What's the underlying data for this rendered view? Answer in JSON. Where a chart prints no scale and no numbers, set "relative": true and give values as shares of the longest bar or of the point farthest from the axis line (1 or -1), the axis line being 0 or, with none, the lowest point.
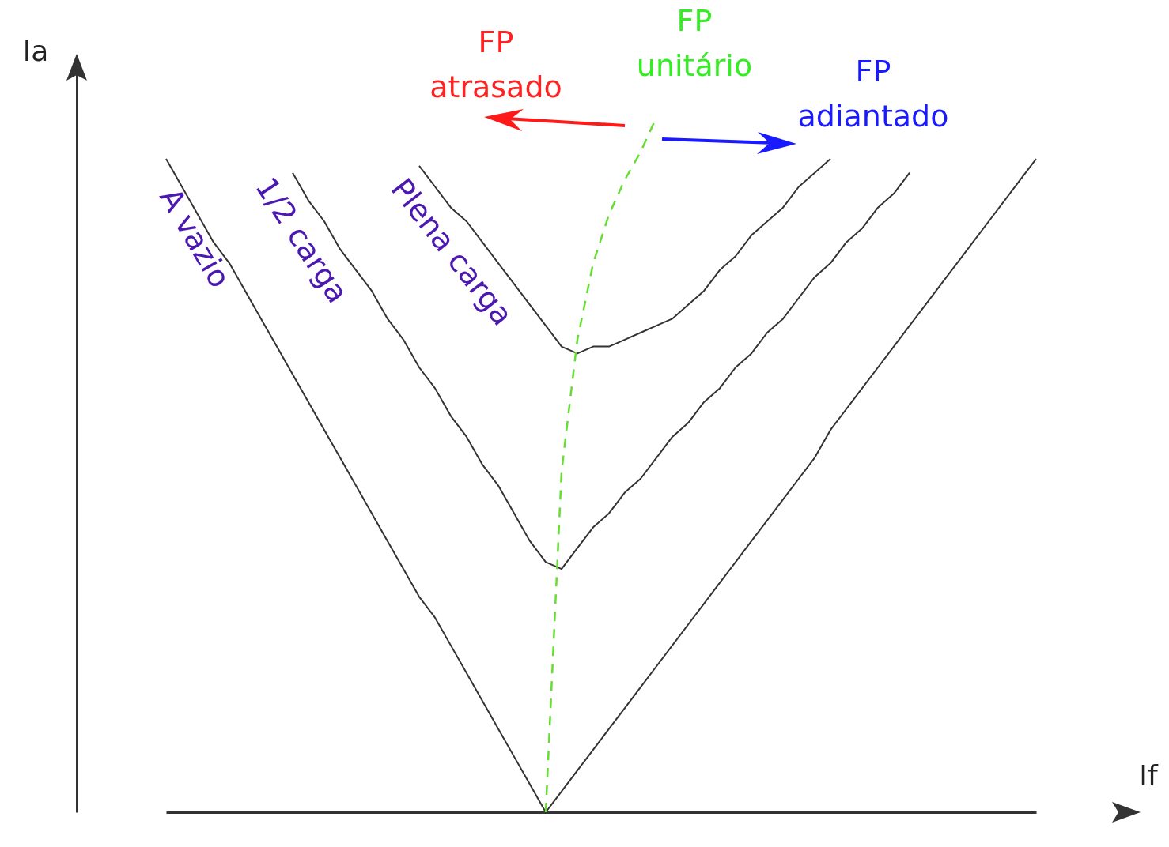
{
  "chart_data": {
    "type": "line",
    "relative": true,
    "xlabel": "If",
    "ylabel": "Ia",
    "categories": [
      null,
      null,
      null,
      null,
      null,
      null,
      null,
      null,
      null,
      null,
      null,
      null,
      null,
      null,
      null,
      null,
      null,
      null,
      null,
      null,
      null,
      null,
      null,
      null,
      null,
      null,
      null,
      null,
      null,
      null,
      null,
      null,
      null,
      null,
      null,
      null,
      null,
      null,
      null,
      null,
      null,
      null,
      null,
      null,
      null,
      null,
      null,
      null,
      null,
      null,
      null,
      null,
      null,
      null,
      null,
      null
    ],
    "series": [
      {
        "name": "A vazio",
        "color": "#333333",
        "values": [
          0.94,
          0.9,
          0.86,
          0.82,
          0.79,
          0.75,
          0.71,
          0.67,
          0.63,
          0.59,
          0.55,
          0.51,
          0.47,
          0.43,
          0.39,
          0.35,
          0.31,
          0.28,
          0.24,
          0.2,
          0.16,
          0.12,
          0.08,
          0.04,
          0,
          0.03,
          0.06,
          0.09,
          0.12,
          0.15,
          0.18,
          0.21,
          0.24,
          0.27,
          0.3,
          0.33,
          0.36,
          0.39,
          0.42,
          0.45,
          0.48,
          0.51,
          0.55,
          0.58,
          0.61,
          0.64,
          0.67,
          0.7,
          0.73,
          0.76,
          0.79,
          0.82,
          0.85,
          0.88,
          0.91,
          0.94
        ]
      },
      {
        "name": "1/2 carga",
        "color": "#333333",
        "values": [
          null,
          null,
          null,
          null,
          null,
          null,
          null,
          null,
          0.92,
          0.88,
          0.85,
          0.81,
          0.78,
          0.75,
          0.71,
          0.68,
          0.64,
          0.61,
          0.57,
          0.54,
          0.5,
          0.47,
          0.43,
          0.39,
          0.36,
          0.35,
          0.38,
          0.41,
          0.43,
          0.46,
          0.48,
          0.51,
          0.54,
          0.56,
          0.59,
          0.61,
          0.64,
          0.66,
          0.69,
          0.71,
          0.74,
          0.77,
          0.79,
          0.82,
          0.84,
          0.87,
          0.89,
          0.92,
          null,
          null,
          null,
          null,
          null,
          null,
          null,
          null
        ]
      },
      {
        "name": "Plena carga",
        "color": "#333333",
        "values": [
          null,
          null,
          null,
          null,
          null,
          null,
          null,
          null,
          null,
          null,
          null,
          null,
          null,
          null,
          null,
          null,
          0.93,
          0.9,
          0.87,
          0.85,
          0.82,
          0.79,
          0.76,
          0.73,
          0.7,
          0.67,
          0.66,
          0.67,
          0.67,
          0.68,
          0.69,
          0.7,
          0.71,
          0.73,
          0.75,
          0.78,
          0.8,
          0.83,
          0.85,
          0.87,
          0.9,
          0.92,
          0.94,
          null,
          null,
          null,
          null,
          null,
          null,
          null,
          null,
          null,
          null,
          null,
          null,
          null
        ]
      },
      {
        "name": "FP unitário",
        "color": "#66dd33",
        "line_style": "dashed",
        "values": [
          null,
          null,
          null,
          null,
          null,
          null,
          null,
          null,
          null,
          null,
          null,
          null,
          null,
          null,
          null,
          null,
          null,
          null,
          null,
          null,
          null,
          null,
          null,
          null,
          0,
          0.49,
          0.68,
          0.79,
          0.86,
          0.91,
          0.95,
          1,
          null,
          null,
          null,
          null,
          null,
          null,
          null,
          null,
          null,
          null,
          null,
          null,
          null,
          null,
          null,
          null,
          null,
          null,
          null,
          null,
          null,
          null,
          null,
          null
        ]
      }
    ],
    "annotations": [
      "FP atrasado",
      "FP adiantado"
    ]
  }
}
